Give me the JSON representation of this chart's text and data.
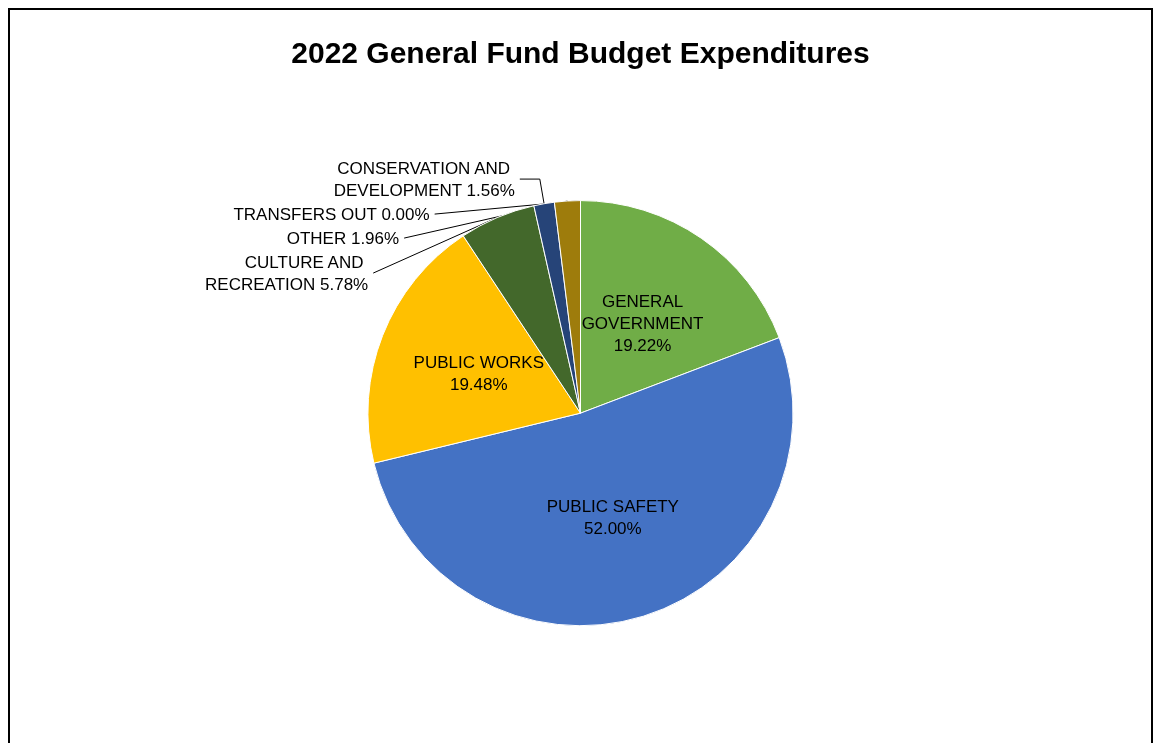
{
  "chart_data": {
    "type": "pie",
    "title": "2022 General Fund Budget Expenditures",
    "categories": [
      "GENERAL GOVERNMENT",
      "PUBLIC SAFETY",
      "PUBLIC WORKS",
      "CULTURE AND RECREATION",
      "CONSERVATION AND DEVELOPMENT",
      "OTHER",
      "TRANSFERS OUT"
    ],
    "values": [
      19.22,
      52.0,
      19.48,
      5.78,
      1.56,
      1.96,
      0.0
    ],
    "value_labels": [
      "19.22%",
      "52.00%",
      "19.48%",
      "5.78%",
      "1.56%",
      "1.96%",
      "0.00%"
    ],
    "colors": [
      "#70ad47",
      "#4472c4",
      "#ffc000",
      "#43682b",
      "#264478",
      "#9e7c0c",
      "#636363"
    ],
    "legend": false
  }
}
